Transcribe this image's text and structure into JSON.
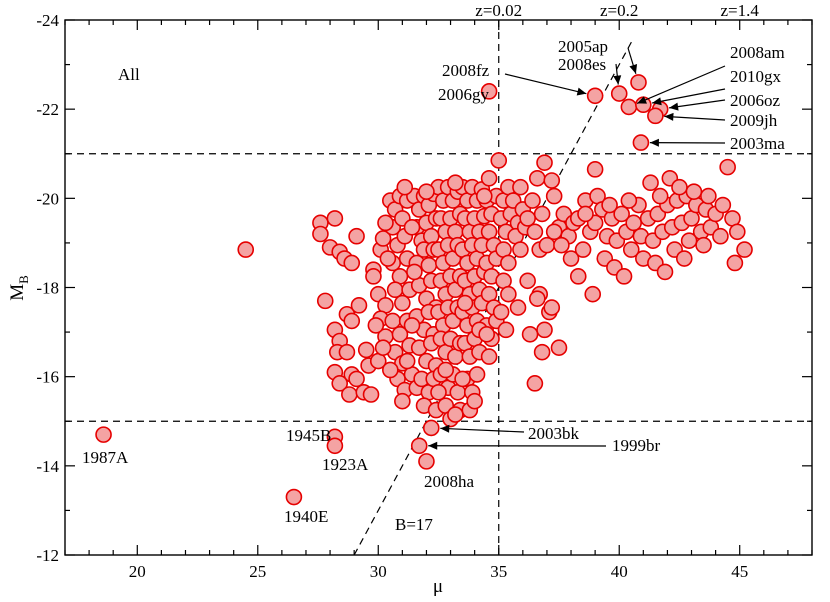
{
  "chart_data": {
    "type": "scatter",
    "xlabel": "μ",
    "ylabel": "M",
    "ylabel_sub": "B",
    "xlim": [
      17,
      48
    ],
    "ylim": [
      -24,
      -12
    ],
    "x_ticks": [
      20,
      25,
      30,
      35,
      40,
      45
    ],
    "y_ticks": [
      -24,
      -22,
      -20,
      -18,
      -16,
      -14,
      -12
    ],
    "y_reversed": true,
    "grid": false,
    "panel_label": "All",
    "marker_color": "#e60000",
    "marker_fill": "#f4a3a3",
    "reference_lines": {
      "horizontal": [
        -21,
        -15
      ],
      "vertical": [
        35
      ]
    },
    "vertical_line_label": "z=0.02",
    "top_labels": [
      {
        "text": "z=0.02",
        "mu": 35
      },
      {
        "text": "z=0.2",
        "mu": 40
      },
      {
        "text": "z=1.4",
        "mu": 45
      }
    ],
    "limit_line": {
      "label": "B=17",
      "x1": 29,
      "y1": -12,
      "x2": 40.6,
      "y2": -23.6
    },
    "labeled_points": [
      {
        "name": "1987A",
        "x": 18.6,
        "y": -14.7
      },
      {
        "name": "2008ha",
        "x": 32.0,
        "y": -14.1
      },
      {
        "name": "1999br",
        "x": 31.7,
        "y": -14.45
      },
      {
        "name": "2003bk",
        "x": 32.2,
        "y": -14.85
      },
      {
        "name": "1945B",
        "x": 28.2,
        "y": -14.65
      },
      {
        "name": "1923A",
        "x": 28.2,
        "y": -14.45
      },
      {
        "name": "1940E",
        "x": 26.5,
        "y": -13.3
      },
      {
        "name": "2006gy",
        "x": 34.6,
        "y": -22.4
      },
      {
        "name": "2008fz",
        "x": 39.0,
        "y": -22.3
      },
      {
        "name": "2008es",
        "x": 40.0,
        "y": -22.35
      },
      {
        "name": "2005ap",
        "x": 40.8,
        "y": -22.6
      },
      {
        "name": "2008am",
        "x": 40.4,
        "y": -22.05
      },
      {
        "name": "2010gx",
        "x": 41.0,
        "y": -22.1
      },
      {
        "name": "2006oz",
        "x": 41.7,
        "y": -22.0
      },
      {
        "name": "2009jh",
        "x": 41.5,
        "y": -21.85
      },
      {
        "name": "2003ma",
        "x": 40.9,
        "y": -21.25
      }
    ],
    "points": [
      [
        24.5,
        -18.85
      ],
      [
        27.6,
        -19.45
      ],
      [
        27.6,
        -19.2
      ],
      [
        28.0,
        -18.9
      ],
      [
        28.2,
        -19.55
      ],
      [
        28.4,
        -18.8
      ],
      [
        28.6,
        -18.65
      ],
      [
        28.9,
        -18.55
      ],
      [
        29.1,
        -19.15
      ],
      [
        27.8,
        -17.7
      ],
      [
        28.2,
        -17.05
      ],
      [
        28.4,
        -16.8
      ],
      [
        28.7,
        -17.4
      ],
      [
        28.9,
        -17.25
      ],
      [
        29.2,
        -17.6
      ],
      [
        28.3,
        -16.55
      ],
      [
        28.7,
        -16.55
      ],
      [
        28.9,
        -16.05
      ],
      [
        28.2,
        -16.1
      ],
      [
        28.4,
        -15.85
      ],
      [
        28.8,
        -15.6
      ],
      [
        29.1,
        -15.95
      ],
      [
        29.4,
        -15.65
      ],
      [
        29.6,
        -16.25
      ],
      [
        29.7,
        -15.6
      ],
      [
        29.5,
        -16.6
      ],
      [
        29.8,
        -18.4
      ],
      [
        29.8,
        -18.25
      ],
      [
        30.1,
        -18.85
      ],
      [
        30.2,
        -19.1
      ],
      [
        30.0,
        -17.85
      ],
      [
        30.3,
        -17.6
      ],
      [
        30.1,
        -17.3
      ],
      [
        30.3,
        -16.9
      ],
      [
        30.0,
        -16.35
      ],
      [
        30.5,
        -19.95
      ],
      [
        30.7,
        -19.75
      ],
      [
        30.9,
        -20.05
      ],
      [
        30.6,
        -19.35
      ],
      [
        31.0,
        -19.55
      ],
      [
        31.2,
        -19.95
      ],
      [
        30.8,
        -18.95
      ],
      [
        31.1,
        -19.15
      ],
      [
        30.6,
        -18.55
      ],
      [
        30.9,
        -18.25
      ],
      [
        31.2,
        -18.65
      ],
      [
        30.7,
        -17.95
      ],
      [
        31.0,
        -17.65
      ],
      [
        31.3,
        -17.95
      ],
      [
        30.6,
        -17.25
      ],
      [
        30.9,
        -16.95
      ],
      [
        31.2,
        -17.25
      ],
      [
        30.7,
        -16.55
      ],
      [
        31.0,
        -16.3
      ],
      [
        31.3,
        -16.7
      ],
      [
        30.8,
        -15.95
      ],
      [
        31.1,
        -15.7
      ],
      [
        31.4,
        -16.05
      ],
      [
        31.0,
        -15.45
      ],
      [
        31.6,
        -15.75
      ],
      [
        31.5,
        -20.05
      ],
      [
        31.7,
        -19.75
      ],
      [
        31.9,
        -20.05
      ],
      [
        32.1,
        -19.85
      ],
      [
        32.3,
        -20.1
      ],
      [
        31.6,
        -19.35
      ],
      [
        31.8,
        -19.05
      ],
      [
        32.0,
        -19.45
      ],
      [
        32.2,
        -19.15
      ],
      [
        32.4,
        -19.55
      ],
      [
        31.6,
        -18.55
      ],
      [
        31.9,
        -18.85
      ],
      [
        32.1,
        -18.5
      ],
      [
        32.3,
        -18.85
      ],
      [
        31.7,
        -18.05
      ],
      [
        32.0,
        -17.75
      ],
      [
        32.2,
        -18.15
      ],
      [
        32.4,
        -17.55
      ],
      [
        31.6,
        -17.35
      ],
      [
        31.9,
        -17.05
      ],
      [
        32.1,
        -17.45
      ],
      [
        32.3,
        -16.95
      ],
      [
        31.7,
        -16.65
      ],
      [
        32.0,
        -16.35
      ],
      [
        32.2,
        -16.75
      ],
      [
        32.4,
        -16.25
      ],
      [
        31.8,
        -15.95
      ],
      [
        32.1,
        -15.65
      ],
      [
        32.3,
        -15.95
      ],
      [
        31.9,
        -15.35
      ],
      [
        32.4,
        -15.25
      ],
      [
        32.5,
        -20.25
      ],
      [
        32.7,
        -19.95
      ],
      [
        32.9,
        -20.25
      ],
      [
        33.1,
        -19.95
      ],
      [
        33.3,
        -20.15
      ],
      [
        32.6,
        -19.55
      ],
      [
        32.8,
        -19.25
      ],
      [
        33.0,
        -19.55
      ],
      [
        33.2,
        -19.25
      ],
      [
        33.4,
        -19.65
      ],
      [
        32.5,
        -18.85
      ],
      [
        32.7,
        -18.55
      ],
      [
        32.9,
        -18.95
      ],
      [
        33.1,
        -18.65
      ],
      [
        33.3,
        -18.95
      ],
      [
        32.6,
        -18.15
      ],
      [
        32.8,
        -17.85
      ],
      [
        33.0,
        -18.25
      ],
      [
        33.2,
        -17.95
      ],
      [
        33.4,
        -18.25
      ],
      [
        32.5,
        -17.45
      ],
      [
        32.7,
        -17.15
      ],
      [
        32.9,
        -17.55
      ],
      [
        33.1,
        -17.25
      ],
      [
        33.3,
        -17.55
      ],
      [
        32.6,
        -16.85
      ],
      [
        32.8,
        -16.55
      ],
      [
        33.0,
        -16.85
      ],
      [
        33.2,
        -16.45
      ],
      [
        33.4,
        -16.75
      ],
      [
        32.6,
        -16.05
      ],
      [
        32.9,
        -15.75
      ],
      [
        33.1,
        -16.05
      ],
      [
        33.3,
        -15.65
      ],
      [
        32.8,
        -15.35
      ],
      [
        33.0,
        -15.05
      ],
      [
        33.4,
        -15.25
      ],
      [
        33.5,
        -20.25
      ],
      [
        33.7,
        -19.95
      ],
      [
        33.9,
        -20.25
      ],
      [
        34.1,
        -19.95
      ],
      [
        34.3,
        -20.2
      ],
      [
        33.6,
        -19.55
      ],
      [
        33.8,
        -19.25
      ],
      [
        34.0,
        -19.55
      ],
      [
        34.2,
        -19.25
      ],
      [
        34.4,
        -19.6
      ],
      [
        33.5,
        -18.85
      ],
      [
        33.7,
        -18.55
      ],
      [
        33.9,
        -18.95
      ],
      [
        34.1,
        -18.65
      ],
      [
        34.3,
        -18.95
      ],
      [
        33.6,
        -18.15
      ],
      [
        33.8,
        -17.85
      ],
      [
        34.0,
        -18.25
      ],
      [
        34.2,
        -17.95
      ],
      [
        34.4,
        -18.35
      ],
      [
        33.5,
        -17.45
      ],
      [
        33.7,
        -17.15
      ],
      [
        33.9,
        -17.55
      ],
      [
        34.1,
        -17.25
      ],
      [
        34.3,
        -17.65
      ],
      [
        33.6,
        -16.75
      ],
      [
        33.8,
        -16.45
      ],
      [
        34.0,
        -16.85
      ],
      [
        34.2,
        -16.55
      ],
      [
        33.7,
        -15.95
      ],
      [
        33.9,
        -15.65
      ],
      [
        34.1,
        -16.05
      ],
      [
        33.8,
        -15.25
      ],
      [
        34.6,
        -20.45
      ],
      [
        34.5,
        -19.95
      ],
      [
        34.7,
        -19.65
      ],
      [
        34.9,
        -20.05
      ],
      [
        34.6,
        -19.25
      ],
      [
        34.8,
        -18.95
      ],
      [
        34.5,
        -18.55
      ],
      [
        34.7,
        -18.25
      ],
      [
        34.9,
        -18.65
      ],
      [
        34.6,
        -17.85
      ],
      [
        34.8,
        -17.55
      ],
      [
        34.5,
        -17.15
      ],
      [
        34.7,
        -16.85
      ],
      [
        34.9,
        -17.25
      ],
      [
        34.6,
        -16.45
      ],
      [
        35.0,
        -20.85
      ],
      [
        35.2,
        -19.95
      ],
      [
        35.4,
        -20.25
      ],
      [
        35.1,
        -19.55
      ],
      [
        35.3,
        -19.25
      ],
      [
        35.5,
        -19.65
      ],
      [
        35.2,
        -18.85
      ],
      [
        35.4,
        -18.55
      ],
      [
        35.2,
        -18.15
      ],
      [
        35.4,
        -17.85
      ],
      [
        35.1,
        -17.45
      ],
      [
        35.3,
        -17.05
      ],
      [
        35.6,
        -19.95
      ],
      [
        35.8,
        -19.45
      ],
      [
        36.0,
        -19.75
      ],
      [
        35.7,
        -19.15
      ],
      [
        36.1,
        -19.35
      ],
      [
        35.9,
        -18.85
      ],
      [
        36.2,
        -18.15
      ],
      [
        35.8,
        -17.55
      ],
      [
        36.3,
        -16.95
      ],
      [
        36.4,
        -19.95
      ],
      [
        36.6,
        -20.45
      ],
      [
        36.8,
        -19.65
      ],
      [
        36.5,
        -19.25
      ],
      [
        36.9,
        -20.8
      ],
      [
        36.7,
        -18.85
      ],
      [
        37.0,
        -18.95
      ],
      [
        37.2,
        -20.4
      ],
      [
        37.3,
        -20.05
      ],
      [
        36.7,
        -17.85
      ],
      [
        37.1,
        -17.45
      ],
      [
        36.9,
        -17.05
      ],
      [
        37.2,
        -17.55
      ],
      [
        36.6,
        -17.75
      ],
      [
        37.5,
        -16.65
      ],
      [
        36.8,
        -16.55
      ],
      [
        36.5,
        -15.85
      ],
      [
        37.5,
        -19.35
      ],
      [
        37.7,
        -19.65
      ],
      [
        37.9,
        -19.15
      ],
      [
        38.1,
        -19.45
      ],
      [
        37.6,
        -18.95
      ],
      [
        38.0,
        -18.65
      ],
      [
        38.3,
        -18.25
      ],
      [
        38.3,
        -19.55
      ],
      [
        38.6,
        -19.95
      ],
      [
        38.8,
        -19.25
      ],
      [
        38.5,
        -18.85
      ],
      [
        39.0,
        -19.45
      ],
      [
        39.1,
        -20.05
      ],
      [
        39.0,
        -20.65
      ],
      [
        38.9,
        -17.85
      ],
      [
        39.3,
        -19.75
      ],
      [
        39.5,
        -19.15
      ],
      [
        39.4,
        -18.65
      ],
      [
        39.7,
        -19.55
      ],
      [
        39.9,
        -19.05
      ],
      [
        39.8,
        -18.45
      ],
      [
        40.1,
        -19.65
      ],
      [
        40.3,
        -19.25
      ],
      [
        40.5,
        -18.85
      ],
      [
        40.2,
        -18.25
      ],
      [
        40.6,
        -19.45
      ],
      [
        40.8,
        -19.85
      ],
      [
        40.9,
        -19.15
      ],
      [
        41.0,
        -18.65
      ],
      [
        41.2,
        -19.55
      ],
      [
        41.4,
        -19.05
      ],
      [
        41.6,
        -19.65
      ],
      [
        41.8,
        -19.25
      ],
      [
        41.5,
        -18.55
      ],
      [
        42.0,
        -19.85
      ],
      [
        42.2,
        -19.35
      ],
      [
        42.4,
        -19.95
      ],
      [
        42.6,
        -19.45
      ],
      [
        42.8,
        -20.05
      ],
      [
        42.3,
        -18.85
      ],
      [
        42.7,
        -18.65
      ],
      [
        43.0,
        -19.55
      ],
      [
        43.2,
        -19.85
      ],
      [
        43.4,
        -19.25
      ],
      [
        43.6,
        -19.75
      ],
      [
        43.8,
        -19.35
      ],
      [
        43.5,
        -18.95
      ],
      [
        44.0,
        -19.65
      ],
      [
        44.2,
        -19.15
      ],
      [
        44.5,
        -20.7
      ],
      [
        44.7,
        -19.55
      ],
      [
        44.9,
        -19.25
      ],
      [
        44.8,
        -18.55
      ],
      [
        45.2,
        -18.85
      ],
      [
        41.3,
        -20.35
      ],
      [
        41.7,
        -20.05
      ],
      [
        42.1,
        -20.45
      ],
      [
        42.5,
        -20.25
      ],
      [
        43.1,
        -20.15
      ],
      [
        43.7,
        -20.05
      ],
      [
        44.3,
        -19.85
      ],
      [
        41.9,
        -18.35
      ],
      [
        42.9,
        -19.05
      ],
      [
        38.6,
        -19.65
      ],
      [
        39.6,
        -19.85
      ],
      [
        40.4,
        -19.95
      ],
      [
        37.3,
        -19.25
      ],
      [
        36.2,
        -19.55
      ],
      [
        35.9,
        -20.25
      ],
      [
        34.4,
        -20.05
      ],
      [
        33.2,
        -20.35
      ],
      [
        32.0,
        -20.15
      ],
      [
        30.3,
        -19.45
      ],
      [
        30.4,
        -18.65
      ],
      [
        29.9,
        -17.15
      ],
      [
        30.5,
        -16.15
      ],
      [
        31.1,
        -20.25
      ],
      [
        31.4,
        -19.35
      ],
      [
        31.5,
        -18.35
      ],
      [
        31.4,
        -17.15
      ],
      [
        31.2,
        -16.35
      ],
      [
        33.6,
        -17.65
      ],
      [
        34.2,
        -17.05
      ],
      [
        32.8,
        -16.15
      ],
      [
        33.5,
        -15.95
      ],
      [
        34.5,
        -16.95
      ],
      [
        34.0,
        -15.45
      ],
      [
        33.2,
        -15.15
      ],
      [
        32.5,
        -15.65
      ],
      [
        30.2,
        -16.65
      ]
    ]
  }
}
